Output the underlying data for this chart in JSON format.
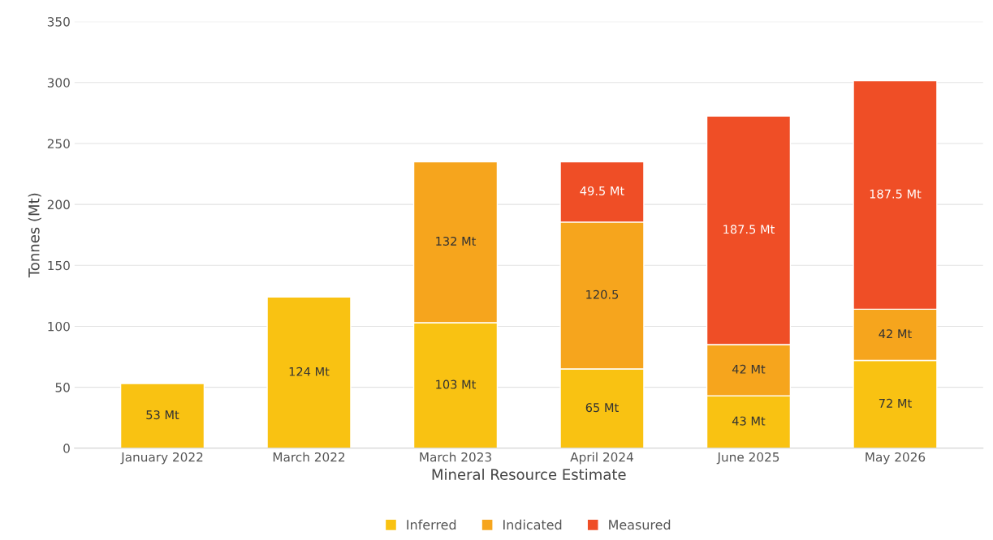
{
  "chart_data": {
    "type": "bar",
    "stacked": true,
    "xlabel": "Mineral Resource Estimate",
    "ylabel": "Tonnes (Mt)",
    "categories": [
      "January 2022",
      "March 2022",
      "March 2023",
      "April 2024",
      "June 2025",
      "May 2026"
    ],
    "series": [
      {
        "name": "Inferred",
        "color": "#f9c212",
        "values": [
          53,
          124,
          103,
          65,
          43,
          72
        ],
        "value_labels": [
          "53 Mt",
          "124 Mt",
          "103 Mt",
          "65 Mt",
          "43 Mt",
          "72 Mt"
        ]
      },
      {
        "name": "Indicated",
        "color": "#f6a51d",
        "values": [
          null,
          null,
          132,
          120.5,
          42,
          42
        ],
        "value_labels": [
          null,
          null,
          "132 Mt",
          "120.5",
          "42 Mt",
          "42 Mt"
        ]
      },
      {
        "name": "Measured",
        "color": "#ef4e26",
        "values": [
          null,
          null,
          null,
          49.5,
          187.5,
          187.5
        ],
        "value_labels": [
          null,
          null,
          null,
          "49.5 Mt",
          "187.5 Mt",
          "187.5 Mt"
        ]
      }
    ],
    "ylim": [
      0,
      350
    ],
    "yticks": [
      0,
      50,
      100,
      150,
      200,
      250,
      300,
      350
    ],
    "grid": "y",
    "legend": "bottom"
  }
}
